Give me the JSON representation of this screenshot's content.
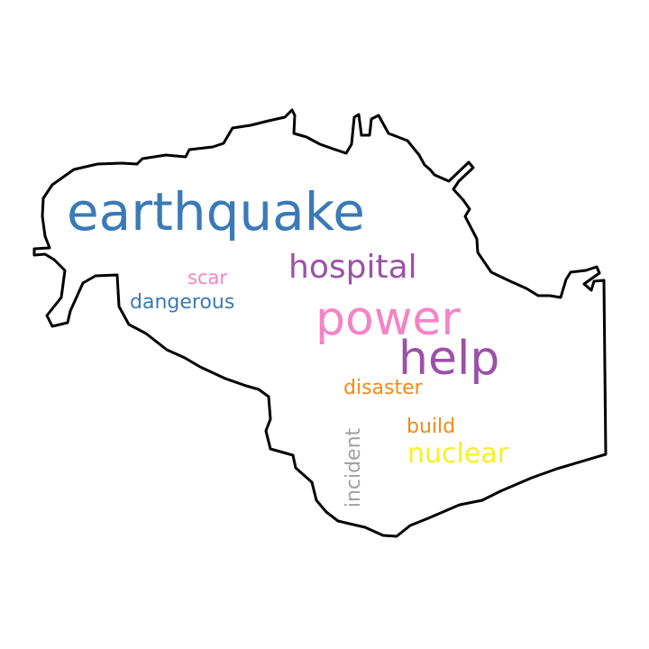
{
  "words": {
    "earthquake": {
      "text": "earthquake",
      "color": "#3a7ab7"
    },
    "hospital": {
      "text": "hospital",
      "color": "#9b51a8"
    },
    "scar": {
      "text": "scar",
      "color": "#f584c6"
    },
    "dangerous": {
      "text": "dangerous",
      "color": "#3a7ab7"
    },
    "power": {
      "text": "power",
      "color": "#f584c6"
    },
    "help": {
      "text": "help",
      "color": "#9b51a8"
    },
    "disaster": {
      "text": "disaster",
      "color": "#f6890f"
    },
    "build": {
      "text": "build",
      "color": "#f6890f"
    },
    "nuclear": {
      "text": "nuclear",
      "color": "#f5f028"
    },
    "incident": {
      "text": "incident",
      "color": "#a0a0a0"
    }
  },
  "shape": {
    "outline_color": "#000000",
    "fill_color": "#ffffff"
  }
}
